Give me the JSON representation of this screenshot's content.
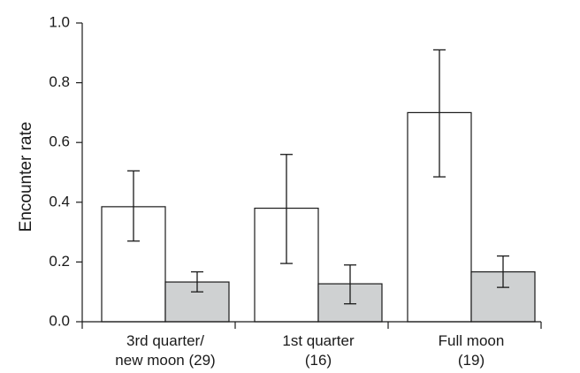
{
  "chart_data": {
    "type": "bar",
    "title": "",
    "xlabel": "",
    "ylabel": "Encounter rate",
    "ylim": [
      0,
      1.0
    ],
    "yticks": [
      "0.0",
      "0.2",
      "0.4",
      "0.6",
      "0.8",
      "1.0"
    ],
    "grid": false,
    "categories": [
      {
        "line1": "3rd quarter/",
        "line2": "new moon (29)"
      },
      {
        "line1": "1st quarter",
        "line2": "(16)"
      },
      {
        "line1": "Full moon",
        "line2": "(19)"
      }
    ],
    "series": [
      {
        "fill": "#ffffff",
        "values": [
          0.385,
          0.38,
          0.7
        ],
        "err_low": [
          0.27,
          0.195,
          0.485
        ],
        "err_high": [
          0.505,
          0.56,
          0.91
        ]
      },
      {
        "fill": "#cfd1d2",
        "values": [
          0.133,
          0.127,
          0.167
        ],
        "err_low": [
          0.1,
          0.06,
          0.115
        ],
        "err_high": [
          0.167,
          0.19,
          0.22
        ]
      }
    ]
  }
}
